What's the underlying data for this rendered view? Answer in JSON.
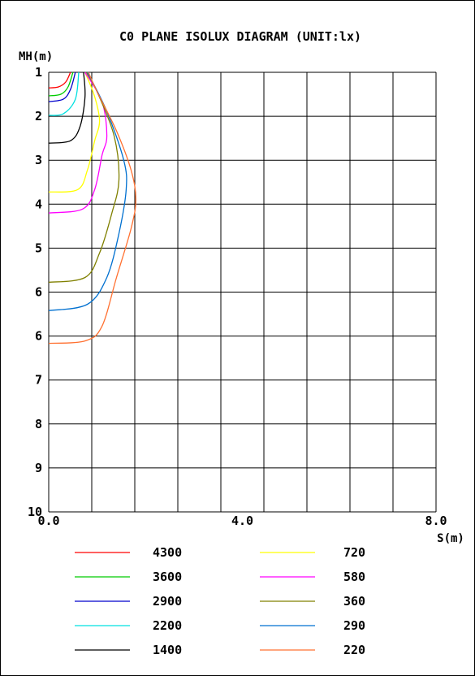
{
  "chart_data": {
    "type": "line",
    "title": "C0 PLANE ISOLUX DIAGRAM (UNIT:lx)",
    "ylabel": "MH(m)",
    "xlabel": "S(m)",
    "xlim": [
      0,
      8
    ],
    "ylim": [
      1,
      10
    ],
    "x_tick_labels": [
      "0.0",
      "4.0",
      "8.0"
    ],
    "y_tick_labels": [
      "1",
      "2",
      "3",
      "4",
      "5",
      "6",
      "6",
      "7",
      "8",
      "9",
      "10"
    ],
    "grid": true,
    "legend_position": "bottom",
    "series": [
      {
        "name": "4300",
        "color": "#ff0000",
        "points": [
          [
            0,
            1.32
          ],
          [
            0.2,
            1.3
          ],
          [
            0.35,
            1.2
          ],
          [
            0.45,
            1.0
          ]
        ]
      },
      {
        "name": "3600",
        "color": "#00cc00",
        "points": [
          [
            0,
            1.48
          ],
          [
            0.25,
            1.45
          ],
          [
            0.4,
            1.3
          ],
          [
            0.5,
            1.0
          ]
        ]
      },
      {
        "name": "2900",
        "color": "#0000cc",
        "points": [
          [
            0,
            1.6
          ],
          [
            0.3,
            1.55
          ],
          [
            0.45,
            1.35
          ],
          [
            0.55,
            1.0
          ]
        ]
      },
      {
        "name": "2200",
        "color": "#00e0e0",
        "points": [
          [
            0,
            1.88
          ],
          [
            0.3,
            1.85
          ],
          [
            0.55,
            1.55
          ],
          [
            0.62,
            1.0
          ]
        ]
      },
      {
        "name": "1400",
        "color": "#000000",
        "points": [
          [
            0,
            2.45
          ],
          [
            0.45,
            2.4
          ],
          [
            0.65,
            2.1
          ],
          [
            0.75,
            1.5
          ],
          [
            0.72,
            1.0
          ]
        ]
      },
      {
        "name": "720",
        "color": "#ffff00",
        "points": [
          [
            0,
            3.45
          ],
          [
            0.6,
            3.4
          ],
          [
            0.8,
            3.0
          ],
          [
            0.95,
            2.4
          ],
          [
            1.05,
            2.0
          ],
          [
            0.95,
            1.5
          ],
          [
            0.75,
            1.0
          ]
        ]
      },
      {
        "name": "580",
        "color": "#ff00ff",
        "points": [
          [
            0,
            3.88
          ],
          [
            0.7,
            3.8
          ],
          [
            0.95,
            3.4
          ],
          [
            1.1,
            2.7
          ],
          [
            1.2,
            2.3
          ],
          [
            1.1,
            1.6
          ],
          [
            0.75,
            1.0
          ]
        ]
      },
      {
        "name": "360",
        "color": "#808000",
        "points": [
          [
            0,
            5.3
          ],
          [
            0.75,
            5.2
          ],
          [
            1.05,
            4.7
          ],
          [
            1.3,
            3.9
          ],
          [
            1.45,
            3.2
          ],
          [
            1.35,
            2.3
          ],
          [
            1.0,
            1.4
          ],
          [
            0.78,
            1.0
          ]
        ]
      },
      {
        "name": "290",
        "color": "#0070d0",
        "points": [
          [
            0,
            5.88
          ],
          [
            0.8,
            5.75
          ],
          [
            1.2,
            5.2
          ],
          [
            1.45,
            4.3
          ],
          [
            1.6,
            3.4
          ],
          [
            1.55,
            2.8
          ],
          [
            1.2,
            1.8
          ],
          [
            0.8,
            1.0
          ]
        ]
      },
      {
        "name": "220",
        "color": "#ff7030",
        "points": [
          [
            0,
            6.55
          ],
          [
            0.75,
            6.5
          ],
          [
            1.1,
            6.2
          ],
          [
            1.4,
            5.2
          ],
          [
            1.7,
            4.2
          ],
          [
            1.8,
            3.6
          ],
          [
            1.7,
            3.0
          ],
          [
            1.4,
            2.2
          ],
          [
            1.0,
            1.4
          ],
          [
            0.82,
            1.0
          ]
        ]
      }
    ]
  }
}
